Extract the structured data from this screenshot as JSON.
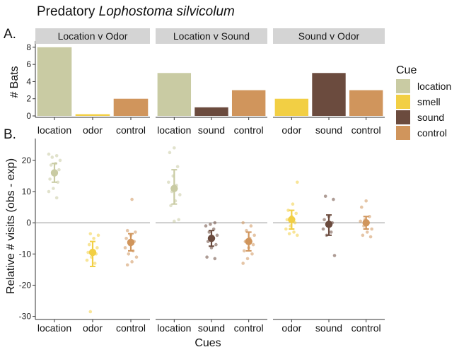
{
  "figure": {
    "title_plain": "Predatory ",
    "title_italic": "Lophostoma silvicolum",
    "panel_a_label": "A.",
    "panel_b_label": "B."
  },
  "colors": {
    "location": "#c9cba3",
    "smell": "#f2cf44",
    "sound": "#6b4b3e",
    "control": "#d0955c",
    "strip": "#d4d4d4",
    "zero_line": "#999999"
  },
  "legend": {
    "title": "Cue",
    "items": [
      {
        "label": "location",
        "color_key": "location"
      },
      {
        "label": "smell",
        "color_key": "smell"
      },
      {
        "label": "sound",
        "color_key": "sound"
      },
      {
        "label": "control",
        "color_key": "control"
      }
    ]
  },
  "chart_data": [
    {
      "type": "bar",
      "panel": "A",
      "ylabel": "# Bats",
      "ylim": [
        0,
        8.4
      ],
      "yticks": [
        0,
        2,
        4,
        6,
        8
      ],
      "facets": [
        {
          "strip": "Location v Odor",
          "categories": [
            "location",
            "odor",
            "control"
          ],
          "values": [
            8,
            0.2,
            2
          ],
          "color_keys": [
            "location",
            "smell",
            "control"
          ]
        },
        {
          "strip": "Location v Sound",
          "categories": [
            "location",
            "sound",
            "control"
          ],
          "values": [
            5,
            1,
            3
          ],
          "color_keys": [
            "location",
            "sound",
            "control"
          ]
        },
        {
          "strip": "Sound v Odor",
          "categories": [
            "odor",
            "sound",
            "control"
          ],
          "values": [
            2,
            5,
            3
          ],
          "color_keys": [
            "smell",
            "sound",
            "control"
          ]
        }
      ]
    },
    {
      "type": "scatter",
      "panel": "B",
      "ylabel": "Relative # visits (obs - exp)",
      "xlabel": "Cues",
      "ylim": [
        -31,
        27
      ],
      "yticks": [
        -30,
        -20,
        -10,
        0,
        10,
        20
      ],
      "reference_line": 0,
      "facets": [
        {
          "categories": [
            "location",
            "odor",
            "control"
          ],
          "color_keys": [
            "location",
            "smell",
            "control"
          ],
          "mean": [
            16,
            -9.5,
            -6.3
          ],
          "err_low": [
            13,
            -14,
            -9
          ],
          "err_high": [
            19,
            -6,
            -3.5
          ],
          "points": [
            [
              22,
              21.5,
              21,
              20,
              19,
              18.5,
              17,
              16,
              14,
              13,
              11,
              10,
              8
            ],
            [
              -3.5,
              -4,
              -5,
              -7,
              -8,
              -9,
              -9.5,
              -10,
              -11,
              -12,
              -13,
              -28.5
            ],
            [
              7.5,
              -2.5,
              -3,
              -4,
              -5,
              -6,
              -7,
              -8,
              -9,
              -10,
              -11,
              -12.5,
              -13.5
            ]
          ]
        },
        {
          "categories": [
            "location",
            "sound",
            "control"
          ],
          "color_keys": [
            "location",
            "sound",
            "control"
          ],
          "mean": [
            11,
            -5,
            -6
          ],
          "err_low": [
            6,
            -7.5,
            -9
          ],
          "err_high": [
            17,
            -2.5,
            -3
          ],
          "points": [
            [
              24,
              22.5,
              18,
              15,
              13,
              12,
              10,
              9,
              7,
              5.5,
              1,
              0.5
            ],
            [
              0,
              -0.5,
              -1,
              -2,
              -3,
              -4,
              -5,
              -6,
              -7,
              -8,
              -11,
              -11.5
            ],
            [
              0,
              -1,
              -2.5,
              -4,
              -5,
              -6,
              -7,
              -8,
              -9,
              -10,
              -11.5,
              -13
            ]
          ]
        },
        {
          "categories": [
            "odor",
            "sound",
            "control"
          ],
          "color_keys": [
            "smell",
            "sound",
            "control"
          ],
          "mean": [
            1,
            -0.5,
            0
          ],
          "err_low": [
            -2,
            -4,
            -2
          ],
          "err_high": [
            4,
            2.5,
            2
          ],
          "points": [
            [
              13,
              6,
              4,
              3,
              2,
              1,
              0,
              -1,
              -2,
              -3,
              -3.5,
              -4
            ],
            [
              8.5,
              7.5,
              2,
              1,
              0,
              -1,
              -2,
              -3,
              -4,
              -10.5
            ],
            [
              7,
              5,
              2,
              1,
              0.5,
              0,
              -1,
              -2,
              -3,
              -4,
              -4.5
            ]
          ]
        }
      ]
    }
  ]
}
